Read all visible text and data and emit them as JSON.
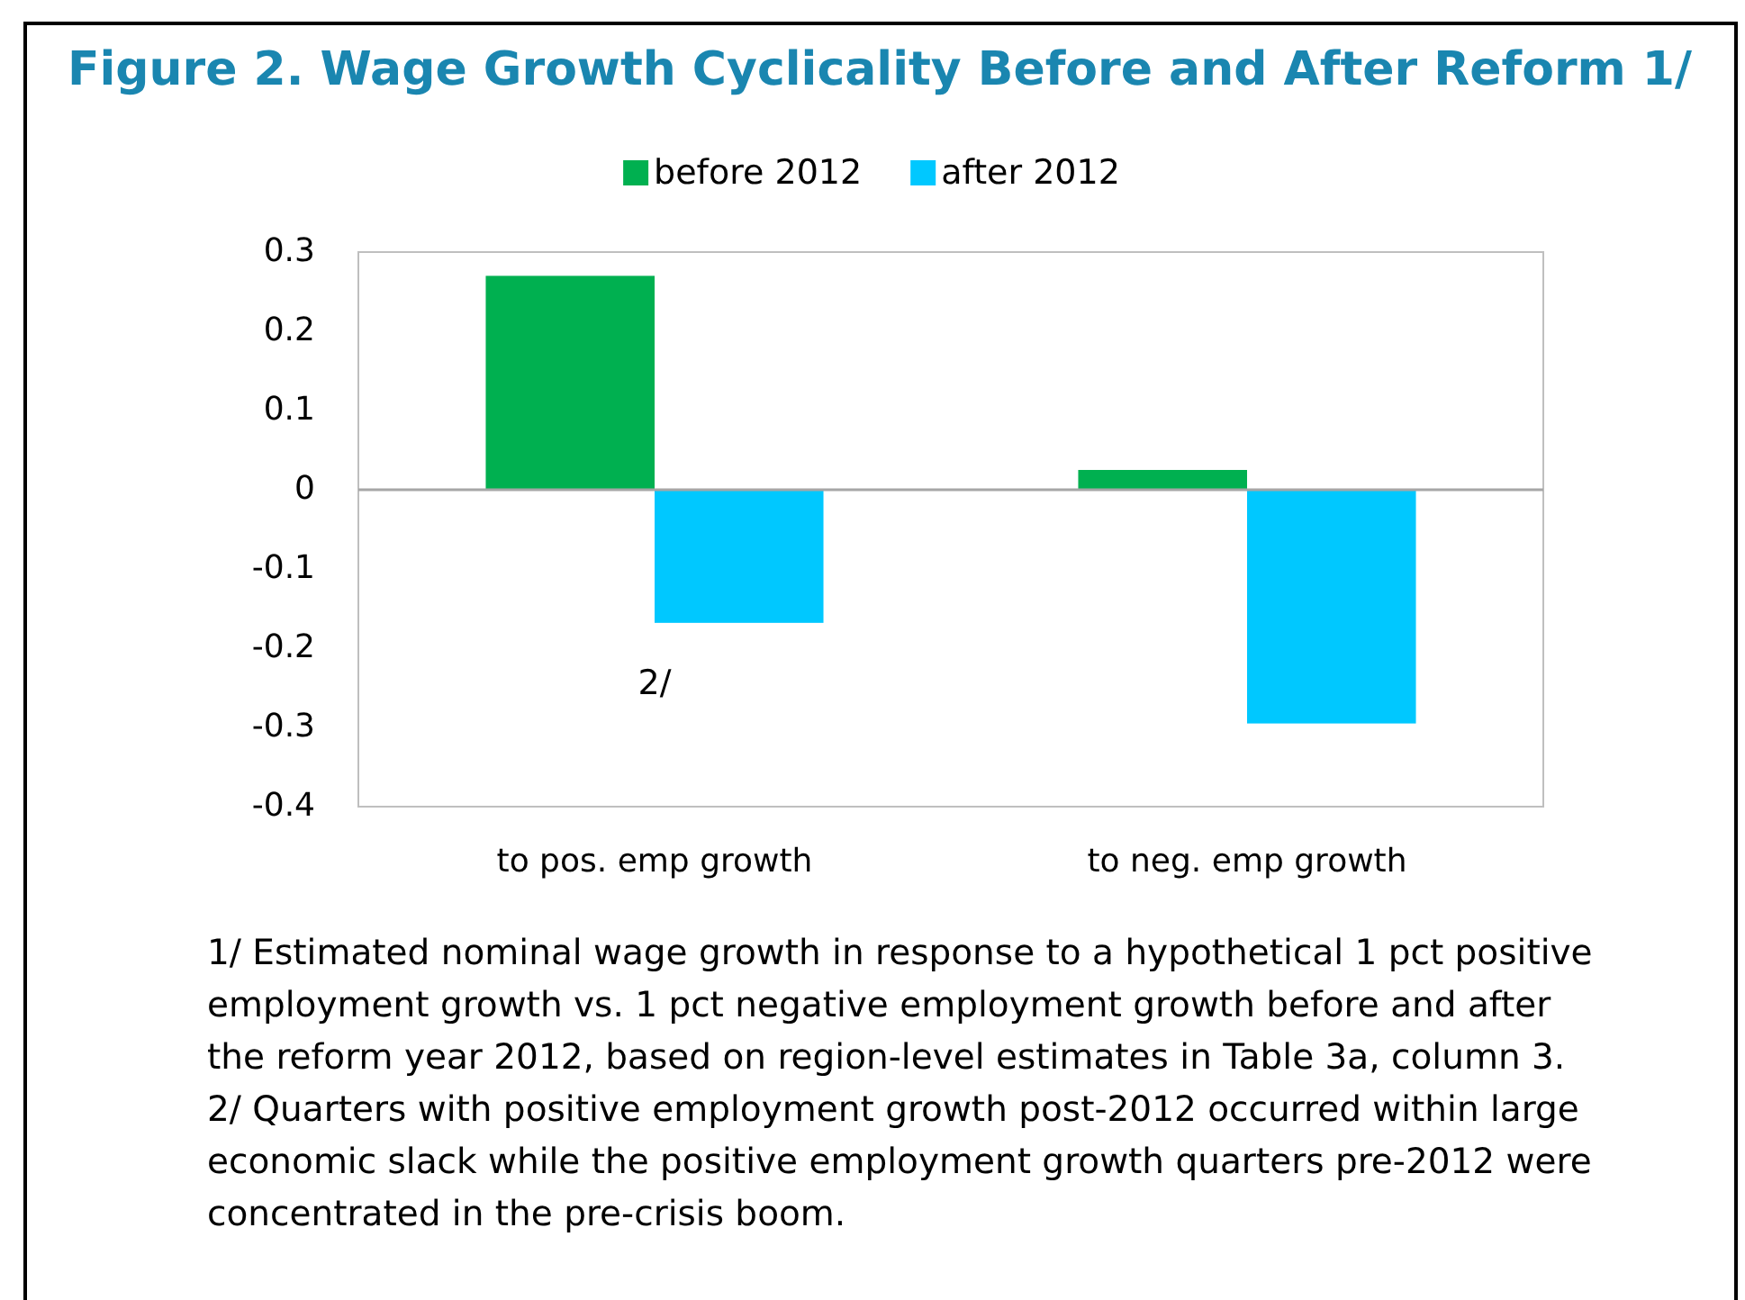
{
  "chart_data": {
    "type": "bar",
    "title": "Figure 2. Wage Growth Cyclicality Before and After Reform 1/",
    "categories": [
      "to pos. emp growth",
      "to neg. emp growth"
    ],
    "series": [
      {
        "name": "before 2012",
        "color": "#00b050",
        "values": [
          0.27,
          0.025
        ]
      },
      {
        "name": "after 2012",
        "color": "#00c8ff",
        "values": [
          -0.168,
          -0.295
        ]
      }
    ],
    "ylim": [
      -0.4,
      0.3
    ],
    "yticks": [
      -0.4,
      -0.3,
      -0.2,
      -0.1,
      0,
      0.1,
      0.2,
      0.3
    ],
    "legend": "top",
    "annotations": [
      "2/",
      "1/ Estimated nominal wage growth in response to a hypothetical 1 pct positive employment growth vs. 1 pct negative employment growth before and after the reform year 2012, based on region-level estimates in Table 3a, column 3.",
      "2/ Quarters with positive employment growth post-2012 occurred within large economic slack while the positive employment growth quarters pre-2012 were concentrated in the pre-crisis boom."
    ]
  }
}
